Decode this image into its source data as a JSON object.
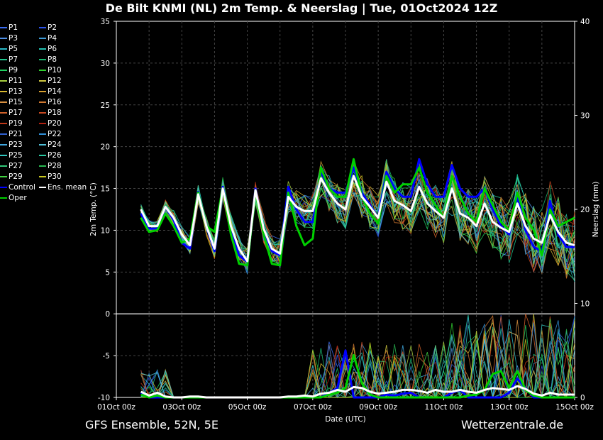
{
  "title": "De Bilt KNMI  (NL)  2m Temp. & Neerslag | Tue, 01Oct2024 12Z",
  "footer_left": "GFS Ensemble, 52N, 5E",
  "footer_right": "Wetterzentrale.de",
  "legend": [
    {
      "label": "P1",
      "color": "#3a6cf0"
    },
    {
      "label": "P2",
      "color": "#2b52e8"
    },
    {
      "label": "P3",
      "color": "#4f8fe6"
    },
    {
      "label": "P4",
      "color": "#3d9ad6"
    },
    {
      "label": "P5",
      "color": "#28b8c8"
    },
    {
      "label": "P6",
      "color": "#20c0b0"
    },
    {
      "label": "P7",
      "color": "#20c890"
    },
    {
      "label": "P8",
      "color": "#18b870"
    },
    {
      "label": "P9",
      "color": "#20d060"
    },
    {
      "label": "P10",
      "color": "#30d030"
    },
    {
      "label": "P11",
      "color": "#a8d040"
    },
    {
      "label": "P12",
      "color": "#d0c840"
    },
    {
      "label": "P13",
      "color": "#d8b830"
    },
    {
      "label": "P14",
      "color": "#d8a030"
    },
    {
      "label": "P15",
      "color": "#d89040"
    },
    {
      "label": "P16",
      "color": "#d07830"
    },
    {
      "label": "P17",
      "color": "#d06028"
    },
    {
      "label": "P18",
      "color": "#c84820"
    },
    {
      "label": "P19",
      "color": "#c03818"
    },
    {
      "label": "P20",
      "color": "#b02010"
    },
    {
      "label": "P21",
      "color": "#3060d0"
    },
    {
      "label": "P22",
      "color": "#3090d8"
    },
    {
      "label": "P23",
      "color": "#40a8e0"
    },
    {
      "label": "P24",
      "color": "#50c0d8"
    },
    {
      "label": "P25",
      "color": "#30c8c0"
    },
    {
      "label": "P26",
      "color": "#28c8a0"
    },
    {
      "label": "P27",
      "color": "#30c878"
    },
    {
      "label": "P28",
      "color": "#28b850"
    },
    {
      "label": "P29",
      "color": "#40d040"
    },
    {
      "label": "P30",
      "color": "#c8c820"
    },
    {
      "label": "Control",
      "color": "#0000ff"
    },
    {
      "label": "Ens. mean",
      "color": "#ffffff"
    },
    {
      "label": "Oper",
      "color": "#00d000"
    }
  ],
  "chart_data": {
    "type": "line",
    "x_unit": "hours after 01Oct2024 00Z",
    "xlim": [
      0,
      336
    ],
    "x_ticks": [
      0,
      48,
      96,
      144,
      192,
      240,
      288,
      336
    ],
    "x_tick_labels": [
      "01Oct 00z",
      "03Oct 00z",
      "05Oct 00z",
      "07Oct 00z",
      "09Oct 00z",
      "11Oct 00z",
      "13Oct 00z",
      "15Oct 00z"
    ],
    "xlabel": "Date (UTC)",
    "ylabel_left": "2m Temp. (°C)",
    "ylim_left": [
      -10,
      35
    ],
    "y_ticks_left": [
      -10,
      -5,
      0,
      5,
      10,
      15,
      20,
      25,
      30,
      35
    ],
    "ylabel_right": "Neerslag (mm)",
    "ylim_right": [
      0,
      40
    ],
    "y_ticks_right": [
      0,
      10,
      20,
      30,
      40
    ],
    "grid": true,
    "zero_line": true,
    "x": [
      18,
      24,
      30,
      36,
      42,
      48,
      54,
      60,
      66,
      72,
      78,
      84,
      90,
      96,
      102,
      108,
      114,
      120,
      126,
      132,
      138,
      144,
      150,
      156,
      162,
      168,
      174,
      180,
      186,
      192,
      198,
      204,
      210,
      216,
      222,
      228,
      234,
      240,
      246,
      252,
      258,
      264,
      270,
      276,
      282,
      288,
      294,
      300,
      306,
      312,
      318,
      324,
      330,
      336
    ],
    "series": [
      {
        "name": "Ens. mean",
        "axis": "left",
        "color": "#ffffff",
        "width": 3,
        "values": [
          12.5,
          10.5,
          10.5,
          12.8,
          11.5,
          9.5,
          8.2,
          14.3,
          10.5,
          7.8,
          15.0,
          10.5,
          7.8,
          6.3,
          14.8,
          10.2,
          7.8,
          7.2,
          14.0,
          12.8,
          12.3,
          12.3,
          16.2,
          14.5,
          13.2,
          12.5,
          16.5,
          14.0,
          12.8,
          11.5,
          15.8,
          13.5,
          13.0,
          12.3,
          15.2,
          13.2,
          12.3,
          11.5,
          15.0,
          12.0,
          11.5,
          10.5,
          13.2,
          11.0,
          10.3,
          9.8,
          13.2,
          10.5,
          9.0,
          8.5,
          11.8,
          9.8,
          8.5,
          8.2
        ]
      },
      {
        "name": "Control",
        "axis": "left",
        "color": "#0000ff",
        "width": 3,
        "values": [
          12.0,
          10.2,
          10.2,
          12.8,
          11.2,
          8.5,
          7.8,
          14.6,
          10.5,
          7.5,
          15.2,
          10.0,
          7.0,
          6.2,
          15.0,
          10.0,
          7.5,
          7.0,
          15.2,
          12.5,
          11.0,
          11.0,
          17.0,
          15.0,
          14.5,
          14.5,
          17.5,
          14.5,
          13.0,
          11.5,
          17.0,
          15.0,
          14.0,
          14.0,
          18.5,
          15.5,
          14.0,
          14.0,
          17.8,
          15.0,
          14.0,
          14.0,
          15.0,
          12.5,
          10.5,
          9.5,
          14.0,
          10.0,
          8.0,
          7.5,
          13.5,
          9.5,
          8.0,
          8.0
        ]
      },
      {
        "name": "Oper",
        "axis": "left",
        "color": "#00d000",
        "width": 3,
        "values": [
          11.5,
          9.8,
          10.0,
          12.0,
          10.5,
          8.5,
          9.0,
          14.5,
          10.5,
          9.8,
          15.0,
          9.5,
          6.0,
          5.8,
          14.8,
          9.5,
          6.0,
          5.8,
          14.5,
          10.5,
          8.2,
          9.0,
          17.5,
          15.0,
          14.0,
          14.0,
          18.5,
          14.0,
          12.0,
          10.8,
          16.5,
          14.5,
          15.5,
          15.5,
          17.5,
          14.5,
          13.0,
          11.5,
          16.5,
          14.0,
          12.0,
          11.0,
          15.0,
          13.0,
          11.0,
          10.0,
          14.5,
          11.5,
          10.0,
          7.0,
          12.5,
          10.5,
          11.0,
          11.5
        ]
      },
      {
        "name": "Ens. mean precip",
        "axis": "right",
        "color": "#ffffff",
        "width": 3,
        "values": [
          0.6,
          0.2,
          0.5,
          0.1,
          0.0,
          0.0,
          0.1,
          0.1,
          0.0,
          0.0,
          0.0,
          0.0,
          0.0,
          0.0,
          0.0,
          0.0,
          0.0,
          0.0,
          0.1,
          0.1,
          0.2,
          0.1,
          0.4,
          0.5,
          0.8,
          0.6,
          1.1,
          1.0,
          0.6,
          0.4,
          0.5,
          0.6,
          0.8,
          0.8,
          0.7,
          0.5,
          0.8,
          0.6,
          0.6,
          0.8,
          0.6,
          0.5,
          0.8,
          1.0,
          0.9,
          0.8,
          1.2,
          0.9,
          0.4,
          0.2,
          0.5,
          0.3,
          0.3,
          0.3
        ]
      },
      {
        "name": "Control precip",
        "axis": "right",
        "color": "#0000ff",
        "width": 3,
        "values": [
          0.5,
          0.0,
          0.0,
          0.0,
          0.0,
          0.0,
          0.0,
          0.0,
          0.0,
          0.0,
          0.0,
          0.0,
          0.0,
          0.0,
          0.0,
          0.0,
          0.0,
          0.0,
          0.0,
          0.0,
          0.0,
          0.0,
          0.0,
          0.5,
          1.0,
          5.0,
          0.0,
          0.0,
          0.0,
          0.0,
          0.3,
          0.2,
          0.4,
          0.5,
          0.0,
          0.0,
          0.0,
          0.0,
          0.5,
          0.8,
          0.0,
          0.0,
          0.0,
          0.0,
          0.0,
          0.5,
          2.0,
          1.0,
          0.0,
          0.0,
          0.0,
          0.0,
          0.0,
          0.0
        ]
      },
      {
        "name": "Oper precip",
        "axis": "right",
        "color": "#00d000",
        "width": 3,
        "values": [
          0.3,
          0.0,
          0.2,
          0.0,
          0.0,
          0.0,
          0.0,
          0.0,
          0.0,
          0.0,
          0.0,
          0.0,
          0.0,
          0.0,
          0.0,
          0.0,
          0.0,
          0.0,
          0.0,
          0.0,
          0.0,
          0.0,
          0.0,
          0.3,
          0.5,
          1.0,
          4.5,
          1.5,
          0.3,
          0.0,
          0.0,
          0.0,
          0.0,
          0.0,
          0.0,
          0.0,
          0.0,
          0.0,
          0.0,
          0.0,
          0.2,
          0.3,
          0.8,
          2.5,
          2.8,
          1.0,
          2.8,
          0.8,
          0.2,
          0.0,
          0.0,
          0.0,
          0.0,
          0.0
        ]
      }
    ]
  }
}
